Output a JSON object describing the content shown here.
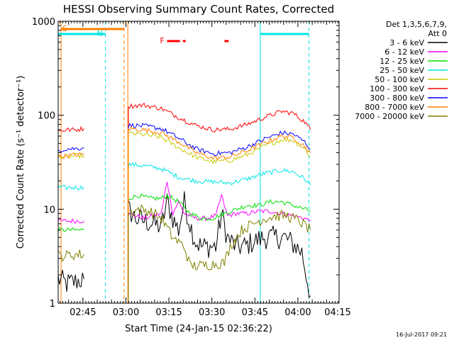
{
  "chart_data": {
    "type": "line",
    "title": "HESSI Observing Summary Count Rates, Corrected",
    "xlabel": "Start Time (24-Jan-15 02:36:22)",
    "ylabel": "Corrected Count Rate (s⁻¹ detector⁻¹)",
    "y_scale": "log",
    "ylim": [
      1,
      1000
    ],
    "xlim_minutes": [
      0,
      98
    ],
    "x_tick_labels": [
      "02:45",
      "03:00",
      "03:15",
      "03:30",
      "03:45",
      "04:00",
      "04:15"
    ],
    "x_tick_minutes": [
      8.63,
      23.63,
      38.63,
      53.63,
      68.63,
      83.63,
      98.63
    ],
    "y_tick_labels": [
      "1",
      "10",
      "100",
      "1000"
    ],
    "y_tick_values": [
      1,
      10,
      100,
      1000
    ],
    "legend_header": [
      "Det 1,3,5,6,7,9,",
      "Att 0"
    ],
    "footer_date": "16-Jul-2017 09:21",
    "flags": {
      "S": {
        "label": "S",
        "color": "#ff8000",
        "start": 1.0,
        "end": 23.0
      },
      "N": {
        "label": "N",
        "color": "#00e5e5",
        "segments": [
          [
            0,
            16.5
          ],
          [
            70.5,
            87.5
          ]
        ]
      },
      "F": {
        "label": "F",
        "color": "#ff0000",
        "segments": [
          [
            38,
            42.5
          ],
          [
            43.5,
            44.5
          ],
          [
            58,
            59.5
          ]
        ]
      }
    },
    "vertical_markers": [
      {
        "minute": 1.0,
        "color": "#ff8000",
        "style": "solid"
      },
      {
        "minute": 16.5,
        "color": "#00e5e5",
        "style": "dashed"
      },
      {
        "minute": 23.0,
        "color": "#ff8000",
        "style": "dashed"
      },
      {
        "minute": 24.3,
        "color": "#ff8000",
        "style": "solid"
      },
      {
        "minute": 70.5,
        "color": "#00e5e5",
        "style": "solid"
      },
      {
        "minute": 87.5,
        "color": "#00e5e5",
        "style": "dashed"
      }
    ],
    "series": [
      {
        "name": "3 - 6 keV",
        "color": "#000000",
        "segments": [
          [
            [
              0,
              1.8
            ],
            [
              3,
              1.6
            ],
            [
              6,
              1.7
            ],
            [
              9,
              1.8
            ]
          ],
          [
            [
              24.5,
              10
            ],
            [
              27,
              8
            ],
            [
              30,
              7.5
            ],
            [
              33,
              7
            ],
            [
              36,
              6.5
            ],
            [
              38,
              12
            ],
            [
              40,
              8
            ],
            [
              42,
              6
            ],
            [
              44,
              12
            ],
            [
              46,
              7
            ],
            [
              48,
              4.5
            ],
            [
              50,
              4
            ],
            [
              52,
              4
            ],
            [
              55,
              4
            ],
            [
              57,
              9
            ],
            [
              59,
              5
            ],
            [
              62,
              4
            ],
            [
              65,
              4
            ],
            [
              68,
              4.5
            ],
            [
              72,
              5
            ],
            [
              76,
              5
            ],
            [
              79,
              5
            ],
            [
              81,
              4.5
            ],
            [
              83,
              4
            ],
            [
              85,
              3.5
            ],
            [
              88,
              1.2
            ]
          ]
        ]
      },
      {
        "name": "6 - 12 keV",
        "color": "#ff00ff",
        "segments": [
          [
            [
              0,
              7.5
            ],
            [
              3,
              7.5
            ],
            [
              6,
              7.5
            ],
            [
              9,
              7.5
            ]
          ],
          [
            [
              24.5,
              9
            ],
            [
              30,
              8
            ],
            [
              36,
              9
            ],
            [
              38,
              20
            ],
            [
              40,
              9
            ],
            [
              42,
              12
            ],
            [
              44,
              9
            ],
            [
              48,
              8
            ],
            [
              52,
              8
            ],
            [
              55,
              8.5
            ],
            [
              57,
              14
            ],
            [
              59,
              8.5
            ],
            [
              62,
              9
            ],
            [
              66,
              9
            ],
            [
              70,
              9.5
            ],
            [
              74,
              9.5
            ],
            [
              78,
              9
            ],
            [
              82,
              8.5
            ],
            [
              86,
              8
            ],
            [
              88,
              7.5
            ]
          ]
        ]
      },
      {
        "name": "12 - 25 keV",
        "color": "#00e000",
        "segments": [
          [
            [
              0,
              6
            ],
            [
              3,
              6
            ],
            [
              6,
              6
            ],
            [
              9,
              6
            ]
          ],
          [
            [
              24.5,
              13
            ],
            [
              28,
              14
            ],
            [
              32,
              13
            ],
            [
              36,
              13
            ],
            [
              38,
              14
            ],
            [
              42,
              12
            ],
            [
              46,
              9
            ],
            [
              50,
              8
            ],
            [
              54,
              8
            ],
            [
              58,
              9
            ],
            [
              62,
              10
            ],
            [
              66,
              11
            ],
            [
              70,
              11
            ],
            [
              74,
              12
            ],
            [
              78,
              12
            ],
            [
              82,
              11
            ],
            [
              86,
              10
            ],
            [
              88,
              9.5
            ]
          ]
        ]
      },
      {
        "name": "25 - 50 keV",
        "color": "#00e5e5",
        "segments": [
          [
            [
              0,
              17
            ],
            [
              3,
              17
            ],
            [
              6,
              17
            ],
            [
              9,
              17
            ]
          ],
          [
            [
              24.5,
              30
            ],
            [
              30,
              29
            ],
            [
              36,
              27
            ],
            [
              42,
              22
            ],
            [
              48,
              20
            ],
            [
              54,
              19.5
            ],
            [
              60,
              19
            ],
            [
              66,
              21
            ],
            [
              72,
              24
            ],
            [
              78,
              26
            ],
            [
              82,
              25
            ],
            [
              86,
              21
            ],
            [
              88,
              18
            ]
          ]
        ]
      },
      {
        "name": "50 - 100 keV",
        "color": "#c8c800",
        "segments": [
          [
            [
              0,
              36
            ],
            [
              3,
              36
            ],
            [
              6,
              37
            ],
            [
              9,
              37
            ]
          ],
          [
            [
              24.5,
              64
            ],
            [
              30,
              62
            ],
            [
              36,
              58
            ],
            [
              42,
              45
            ],
            [
              48,
              36
            ],
            [
              54,
              32
            ],
            [
              60,
              33
            ],
            [
              66,
              38
            ],
            [
              72,
              47
            ],
            [
              78,
              55
            ],
            [
              82,
              54
            ],
            [
              86,
              44
            ],
            [
              88,
              36
            ]
          ]
        ]
      },
      {
        "name": "100 - 300 keV",
        "color": "#ff0000",
        "segments": [
          [
            [
              0,
              68
            ],
            [
              3,
              70
            ],
            [
              6,
              70
            ],
            [
              9,
              72
            ]
          ],
          [
            [
              24.5,
              125
            ],
            [
              30,
              128
            ],
            [
              36,
              118
            ],
            [
              42,
              95
            ],
            [
              48,
              78
            ],
            [
              54,
              70
            ],
            [
              60,
              71
            ],
            [
              66,
              80
            ],
            [
              72,
              95
            ],
            [
              78,
              110
            ],
            [
              82,
              105
            ],
            [
              86,
              85
            ],
            [
              88,
              70
            ]
          ]
        ]
      },
      {
        "name": "300 - 800 keV",
        "color": "#0000ff",
        "segments": [
          [
            [
              0,
              42
            ],
            [
              3,
              44
            ],
            [
              6,
              44
            ],
            [
              9,
              45
            ]
          ],
          [
            [
              24.5,
              78
            ],
            [
              30,
              77
            ],
            [
              36,
              72
            ],
            [
              42,
              57
            ],
            [
              48,
              44
            ],
            [
              54,
              39
            ],
            [
              60,
              40
            ],
            [
              66,
              46
            ],
            [
              72,
              56
            ],
            [
              78,
              65
            ],
            [
              82,
              63
            ],
            [
              86,
              52
            ],
            [
              88,
              44
            ]
          ]
        ]
      },
      {
        "name": "800 - 7000 keV",
        "color": "#ff8000",
        "segments": [
          [
            [
              0,
              36
            ],
            [
              3,
              37
            ],
            [
              6,
              38
            ],
            [
              9,
              38
            ]
          ],
          [
            [
              24.5,
              72
            ],
            [
              30,
              70
            ],
            [
              36,
              65
            ],
            [
              42,
              52
            ],
            [
              48,
              40
            ],
            [
              54,
              35
            ],
            [
              60,
              36
            ],
            [
              66,
              42
            ],
            [
              72,
              51
            ],
            [
              78,
              60
            ],
            [
              82,
              58
            ],
            [
              86,
              47
            ],
            [
              88,
              40
            ]
          ]
        ]
      },
      {
        "name": "7000 - 20000 keV",
        "color": "#808000",
        "segments": [
          [
            [
              0,
              3.2
            ],
            [
              3,
              3.2
            ],
            [
              6,
              3.3
            ],
            [
              9,
              3.3
            ]
          ],
          [
            [
              24.5,
              9
            ],
            [
              28,
              10
            ],
            [
              32,
              9.5
            ],
            [
              36,
              8
            ],
            [
              40,
              5
            ],
            [
              44,
              4
            ],
            [
              46,
              2.5
            ],
            [
              50,
              2.5
            ],
            [
              54,
              2.6
            ],
            [
              58,
              2.7
            ],
            [
              60,
              4
            ],
            [
              64,
              6
            ],
            [
              68,
              7
            ],
            [
              72,
              8
            ],
            [
              76,
              8.5
            ],
            [
              80,
              8.5
            ],
            [
              84,
              7.5
            ],
            [
              88,
              6
            ]
          ]
        ]
      }
    ]
  }
}
